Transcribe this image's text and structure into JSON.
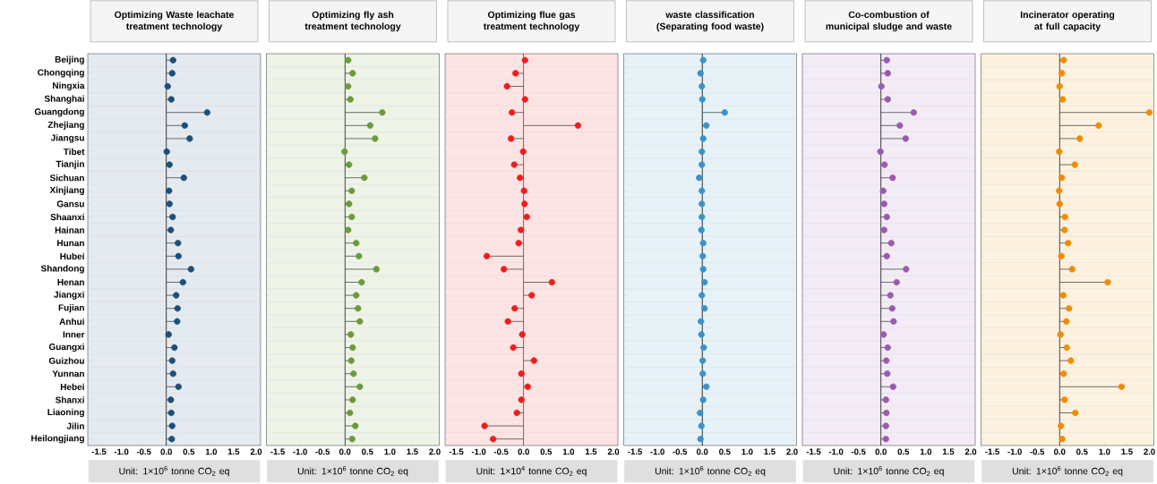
{
  "chart_data": [
    {
      "type": "lollipop",
      "orientation": "horizontal",
      "title": "Optimizing Waste leachate treatment technology",
      "xlabel": "Unit: 1×10$^{6}$ tonne CO$_{2}$ eq",
      "marker": "circle",
      "grid": "y",
      "categories": [
        "Beijing",
        "Chongqing",
        "Ningxia",
        "Shanghai",
        "Guangdong",
        "Zhejiang",
        "Jiangsu",
        "Tibet",
        "Tianjin",
        "Sichuan",
        "Xinjiang",
        "Gansu",
        "Shaanxi",
        "Hainan",
        "Hunan",
        "Hubei",
        "Shandong",
        "Henan",
        "Jiangxi",
        "Fujian",
        "Anhui",
        "Inner",
        "Guangxi",
        "Guizhou",
        "Yunnan",
        "Hebei",
        "Shanxi",
        "Liaoning",
        "Jilin",
        "Heilongjiang"
      ],
      "xlim": [
        -1.75,
        2.1
      ],
      "xticks": [
        {
          "value": -1.5,
          "label": "-1.5"
        },
        {
          "value": -1,
          "label": "-1.0"
        },
        {
          "value": -0.5,
          "label": "-0.5"
        },
        {
          "value": 0,
          "label": "0.0"
        },
        {
          "value": 0.5,
          "label": "0.5"
        },
        {
          "value": 1,
          "label": "1.0"
        },
        {
          "value": 1.5,
          "label": "1.5"
        },
        {
          "value": 2,
          "label": "2.0"
        }
      ],
      "series": [
        {
          "color": "#1b4f7a",
          "values": [
            0.15,
            0.13,
            0.03,
            0.11,
            0.91,
            0.41,
            0.52,
            0.01,
            0.07,
            0.39,
            0.06,
            0.07,
            0.14,
            0.1,
            0.26,
            0.27,
            0.55,
            0.37,
            0.22,
            0.25,
            0.24,
            0.05,
            0.18,
            0.13,
            0.15,
            0.27,
            0.1,
            0.11,
            0.13,
            0.12
          ]
        }
      ]
    },
    {
      "type": "lollipop",
      "orientation": "horizontal",
      "title": "Optimizing fly ash treatment technology",
      "xlabel": "Unit: 1×10$^{6}$ tonne CO$_{2}$ eq",
      "marker": "circle",
      "grid": "y",
      "tick_labels": "x",
      "xlim": [
        -1.75,
        2.1
      ],
      "xticks": [
        {
          "value": -1.5,
          "label": "-1.5"
        },
        {
          "value": -1,
          "label": "-1.0"
        },
        {
          "value": -0.5,
          "label": "-0.5"
        },
        {
          "value": 0,
          "label": "0.0"
        },
        {
          "value": 0.5,
          "label": "0.5"
        },
        {
          "value": 1,
          "label": "1.0"
        },
        {
          "value": 1.5,
          "label": "1.5"
        },
        {
          "value": 2,
          "label": "2.0"
        }
      ],
      "series": [
        {
          "color": "#6a9a3a",
          "values": [
            0.07,
            0.17,
            0.07,
            0.12,
            0.83,
            0.56,
            0.67,
            -0.01,
            0.09,
            0.43,
            0.15,
            0.09,
            0.15,
            0.07,
            0.25,
            0.31,
            0.7,
            0.37,
            0.25,
            0.29,
            0.33,
            0.13,
            0.17,
            0.14,
            0.19,
            0.33,
            0.17,
            0.11,
            0.23,
            0.16
          ]
        }
      ]
    },
    {
      "type": "lollipop",
      "orientation": "horizontal",
      "title": "Optimizing flue gas treatment technology",
      "xlabel": "Unit: 1×10$^{4}$ tonne CO$_{2}$ eq",
      "marker": "circle",
      "grid": "y",
      "tick_labels": "x",
      "xlim": [
        -1.75,
        2.1
      ],
      "xticks": [
        {
          "value": -1.5,
          "label": "-1.5"
        },
        {
          "value": -1,
          "label": "-1.0"
        },
        {
          "value": -0.5,
          "label": "-0.5"
        },
        {
          "value": 0,
          "label": "0.0"
        },
        {
          "value": 0.5,
          "label": "0.5"
        },
        {
          "value": 1,
          "label": "1.0"
        },
        {
          "value": 1.5,
          "label": "1.5"
        },
        {
          "value": 2,
          "label": "2.0"
        }
      ],
      "series": [
        {
          "color": "#f21c1c",
          "values": [
            0.03,
            -0.18,
            -0.37,
            0.03,
            -0.26,
            1.21,
            -0.28,
            -0.01,
            -0.21,
            -0.08,
            0.01,
            0.02,
            0.07,
            -0.06,
            -0.11,
            -0.82,
            -0.44,
            0.63,
            0.18,
            -0.2,
            -0.35,
            -0.03,
            -0.23,
            0.23,
            -0.05,
            0.09,
            -0.05,
            -0.15,
            -0.87,
            -0.68
          ]
        }
      ]
    },
    {
      "type": "lollipop",
      "orientation": "horizontal",
      "title": "waste classification (Separating food waste)",
      "xlabel": "Unit: 1×10$^{6}$ tonne CO$_{2}$ eq",
      "marker": "circle",
      "grid": "y",
      "tick_labels": "x",
      "xlim": [
        -1.75,
        2.1
      ],
      "xticks": [
        {
          "value": -1.5,
          "label": "-1.5"
        },
        {
          "value": -1,
          "label": "-1.0"
        },
        {
          "value": -0.5,
          "label": "-0.5"
        },
        {
          "value": 0,
          "label": "0.0"
        },
        {
          "value": 0.5,
          "label": "0.5"
        },
        {
          "value": 1,
          "label": "1.0"
        },
        {
          "value": 1.5,
          "label": "1.5"
        },
        {
          "value": 2,
          "label": "2.0"
        }
      ],
      "series": [
        {
          "color": "#3a93c8",
          "values": [
            0.02,
            -0.04,
            -0.01,
            0,
            0.5,
            0.09,
            0.02,
            -0.01,
            -0.01,
            -0.07,
            -0.01,
            -0.01,
            -0.01,
            -0.02,
            0.02,
            0.01,
            0.02,
            0.05,
            -0.01,
            0.05,
            -0.03,
            -0.02,
            0.03,
            0.01,
            0.01,
            0.09,
            0.02,
            -0.05,
            -0.02,
            -0.04
          ]
        }
      ]
    },
    {
      "type": "lollipop",
      "orientation": "horizontal",
      "title": "Co-combustion of municipal sludge and waste",
      "xlabel": "Unit: 1×10$^{6}$ tonne CO$_{2}$ eq",
      "marker": "circle",
      "grid": "y",
      "tick_labels": "x",
      "xlim": [
        -1.75,
        2.1
      ],
      "xticks": [
        {
          "value": -1.5,
          "label": "-1.5"
        },
        {
          "value": -1,
          "label": "-1.0"
        },
        {
          "value": -0.5,
          "label": "-0.5"
        },
        {
          "value": 0,
          "label": "0.0"
        },
        {
          "value": 0.5,
          "label": "0.5"
        },
        {
          "value": 1,
          "label": "1.0"
        },
        {
          "value": 1.5,
          "label": "1.5"
        },
        {
          "value": 2,
          "label": "2.0"
        }
      ],
      "series": [
        {
          "color": "#9a5ab0",
          "values": [
            0.13,
            0.15,
            0.01,
            0.15,
            0.73,
            0.42,
            0.55,
            -0.01,
            0.08,
            0.26,
            0.05,
            0.07,
            0.13,
            0.07,
            0.23,
            0.13,
            0.56,
            0.35,
            0.21,
            0.25,
            0.28,
            0.06,
            0.15,
            0.12,
            0.14,
            0.27,
            0.11,
            0.12,
            0.11,
            0.11
          ]
        }
      ]
    },
    {
      "type": "lollipop",
      "orientation": "horizontal",
      "title": "Incinerator operating at full capacity",
      "xlabel": "Unit: 1×10$^{6}$ tonne CO$_{2}$ eq",
      "marker": "circle",
      "grid": "y",
      "tick_labels": "x",
      "xlim": [
        -1.75,
        2.1
      ],
      "xticks": [
        {
          "value": -1.5,
          "label": "-1.5"
        },
        {
          "value": -1,
          "label": "-1.0"
        },
        {
          "value": -0.5,
          "label": "-0.5"
        },
        {
          "value": 0,
          "label": "0.0"
        },
        {
          "value": 0.5,
          "label": "0.5"
        },
        {
          "value": 1,
          "label": "1.0"
        },
        {
          "value": 1.5,
          "label": "1.5"
        },
        {
          "value": 2,
          "label": "2.0"
        }
      ],
      "series": [
        {
          "color": "#f08c00",
          "values": [
            0.09,
            0.05,
            0,
            0.07,
            2.0,
            0.87,
            0.45,
            -0.01,
            0.34,
            0.05,
            -0.01,
            0,
            0.12,
            0.11,
            0.19,
            0.04,
            0.28,
            1.07,
            0.08,
            0.21,
            0.15,
            0.02,
            0.16,
            0.25,
            0.09,
            1.38,
            0.11,
            0.35,
            0.03,
            0.06
          ]
        }
      ]
    }
  ]
}
